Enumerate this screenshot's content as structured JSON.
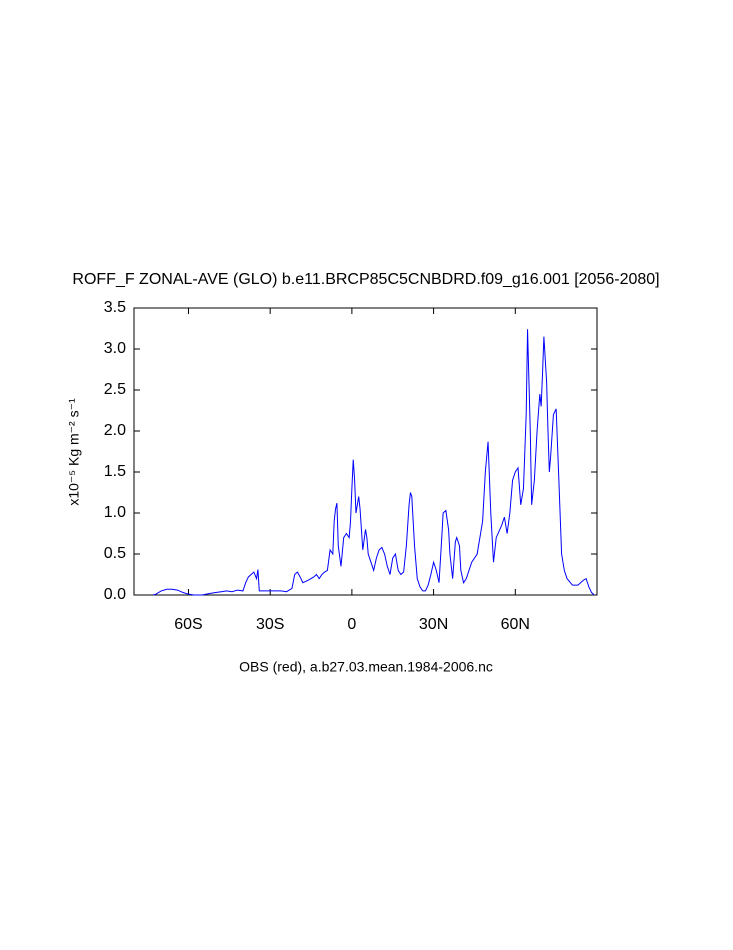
{
  "chart_data": {
    "type": "line",
    "title": "ROFF_F ZONAL-AVE (GLO) b.e11.BRCP85C5CNBDRD.f09_g16.001 [2056-2080]",
    "xlabel": "OBS (red), a.b27.03.mean.1984-2006.nc",
    "ylabel": "x10⁻⁵ Kg m⁻² s⁻¹",
    "xlim": [
      -80,
      90
    ],
    "ylim": [
      0,
      3.5
    ],
    "xticks": [
      {
        "value": -60,
        "label": "60S"
      },
      {
        "value": -30,
        "label": "30S"
      },
      0,
      {
        "value": 30,
        "label": "30N"
      },
      {
        "value": 60,
        "label": "60N"
      }
    ],
    "yticks": [
      {
        "value": 0,
        "label": "0.0"
      },
      {
        "value": 0.5,
        "label": "0.5"
      },
      {
        "value": 1,
        "label": "1.0"
      },
      {
        "value": 1.5,
        "label": "1.5"
      },
      {
        "value": 2,
        "label": "2.0"
      },
      {
        "value": 2.5,
        "label": "2.5"
      },
      {
        "value": 3,
        "label": "3.0"
      },
      {
        "value": 3.5,
        "label": "3.5"
      }
    ],
    "x": [
      -73,
      -72,
      -70,
      -68,
      -66,
      -64,
      -62,
      -60,
      -58,
      -55,
      -52,
      -50,
      -48,
      -46,
      -44,
      -42,
      -40,
      -39,
      -38,
      -37,
      -36,
      -35,
      -34.5,
      -34,
      -30,
      -26,
      -24,
      -22,
      -21,
      -20,
      -19,
      -18,
      -16,
      -15,
      -14,
      -13,
      -12,
      -11,
      -10,
      -9,
      -8,
      -7,
      -6.5,
      -6,
      -5.5,
      -5,
      -4,
      -3,
      -2,
      -1,
      -0.5,
      0,
      0.5,
      1,
      1.5,
      2,
      2.5,
      3,
      3.5,
      4,
      5,
      5.5,
      6,
      7,
      8,
      9,
      10,
      11,
      12,
      13,
      14,
      15,
      16,
      17,
      18,
      19,
      20,
      21,
      21.5,
      22,
      23,
      24,
      25,
      26,
      27,
      28,
      29,
      30,
      31,
      32,
      33,
      33.5,
      34.5,
      35.5,
      36,
      37,
      38,
      38.5,
      39.5,
      40,
      41,
      42,
      44,
      46,
      48,
      49,
      50,
      51,
      52,
      53,
      55,
      56,
      57,
      58,
      59,
      60,
      61,
      62,
      63,
      64,
      64.5,
      65.5,
      66,
      67,
      68,
      69,
      69.5,
      70,
      70.5,
      71.5,
      72,
      72.5,
      73,
      74,
      75,
      76,
      77,
      78,
      79,
      81,
      83,
      85,
      86,
      87,
      88,
      89
    ],
    "series": [
      {
        "color": "#0000ff",
        "values": [
          0,
          0.01,
          0.05,
          0.07,
          0.07,
          0.06,
          0.03,
          0.01,
          0,
          0,
          0.02,
          0.03,
          0.04,
          0.05,
          0.04,
          0.06,
          0.05,
          0.15,
          0.22,
          0.25,
          0.28,
          0.2,
          0.31,
          0.05,
          0.05,
          0.05,
          0.04,
          0.08,
          0.25,
          0.28,
          0.22,
          0.15,
          0.18,
          0.2,
          0.22,
          0.25,
          0.2,
          0.25,
          0.28,
          0.3,
          0.55,
          0.5,
          0.9,
          1.05,
          1.12,
          0.6,
          0.35,
          0.7,
          0.75,
          0.7,
          0.9,
          1.3,
          1.65,
          1.4,
          1,
          1.1,
          1.2,
          1.05,
          0.8,
          0.55,
          0.8,
          0.7,
          0.5,
          0.4,
          0.3,
          0.45,
          0.55,
          0.58,
          0.5,
          0.35,
          0.25,
          0.45,
          0.5,
          0.3,
          0.25,
          0.28,
          0.6,
          1.1,
          1.25,
          1.2,
          0.6,
          0.2,
          0.1,
          0.05,
          0.05,
          0.12,
          0.25,
          0.4,
          0.3,
          0.15,
          0.7,
          1,
          1.03,
          0.8,
          0.5,
          0.2,
          0.65,
          0.7,
          0.6,
          0.3,
          0.15,
          0.2,
          0.4,
          0.5,
          0.9,
          1.5,
          1.87,
          1,
          0.4,
          0.7,
          0.85,
          0.95,
          0.75,
          1,
          1.4,
          1.5,
          1.55,
          1.1,
          1.3,
          2.2,
          3.24,
          2,
          1.1,
          1.4,
          2,
          2.45,
          2.3,
          2.7,
          3.15,
          2.6,
          2,
          1.5,
          1.7,
          2.2,
          2.27,
          1.4,
          0.5,
          0.3,
          0.2,
          0.12,
          0.12,
          0.18,
          0.2,
          0.1,
          0.03,
          0
        ]
      }
    ]
  }
}
